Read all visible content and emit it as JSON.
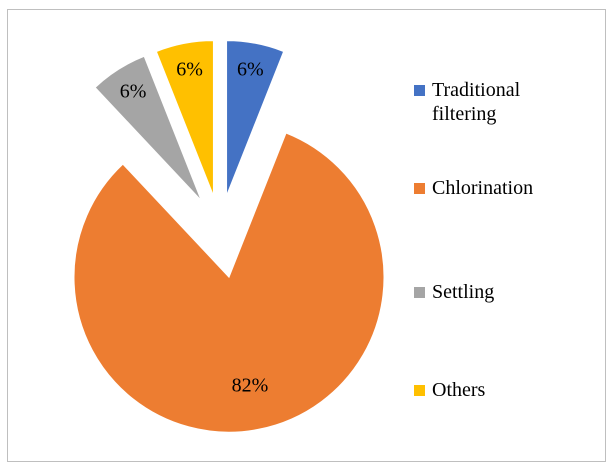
{
  "chart_data": {
    "type": "pie",
    "categories": [
      "Traditional filtering",
      "Chlorination",
      "Settling",
      "Others"
    ],
    "values": [
      6,
      82,
      6,
      6
    ],
    "value_labels": [
      "6%",
      "82%",
      "6%",
      "6%"
    ],
    "colors": [
      "#4472c4",
      "#ed7d31",
      "#a5a5a5",
      "#ffc000"
    ],
    "legend": "right"
  }
}
